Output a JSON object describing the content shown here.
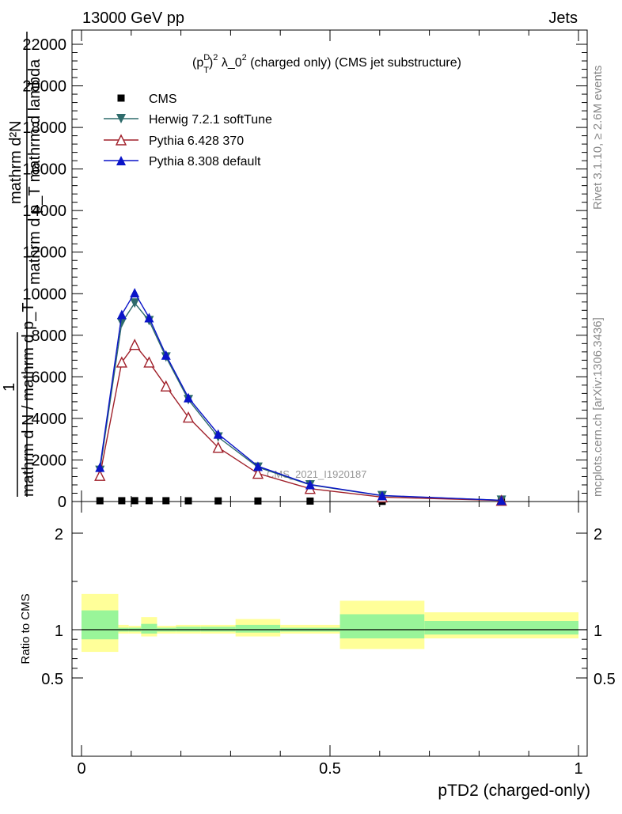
{
  "header": {
    "left": "13000 GeV pp",
    "right": "Jets"
  },
  "plot_title": {
    "prefix": "(p",
    "sup_D": "D",
    "sub_T": "T",
    "sup_2": "2",
    "suffix": " λ_0",
    "sup_tail": "2",
    "rest": " (charged only) (CMS jet substructure)"
  },
  "side_labels": {
    "rivet": "Rivet 3.1.10, ≥ 2.6M events",
    "mcplots": "mcplots.cern.ch [arXiv:1306.3436]"
  },
  "watermark": "CMS_2021_I1920187",
  "ylabel_main": {
    "numerator": "mathrm d²N",
    "fraction_one": "1",
    "denominator_top": "mathrm d p_T mathrm d lambda",
    "denominator_bottom": "mathrm d N / mathrm d p_T"
  },
  "ylabel_ratio": "Ratio to CMS",
  "xlabel": "pTD2 (charged-only)",
  "colors": {
    "cms": "#000000",
    "herwig": "#2e6b6b",
    "pythia6": "#a0202a",
    "pythia8": "#0a14c8",
    "band_inner": "#99f599",
    "band_outer": "#ffff99"
  },
  "chart_data": [
    {
      "type": "line",
      "panel": "main",
      "xlim": [
        0,
        1
      ],
      "ylim": [
        0,
        22500
      ],
      "y_ticks": [
        0,
        2000,
        4000,
        6000,
        8000,
        10000,
        12000,
        14000,
        16000,
        18000,
        20000,
        22000
      ],
      "y_tick_labels": [
        "0",
        "2000",
        "4000",
        "6000",
        "8000",
        "10000",
        "12000",
        "14000",
        "16000",
        "18000",
        "20000",
        "22000"
      ],
      "x": [
        0.037,
        0.081,
        0.107,
        0.136,
        0.17,
        0.215,
        0.275,
        0.355,
        0.46,
        0.605,
        0.845
      ],
      "series": [
        {
          "name": "CMS",
          "marker": "square",
          "values": [
            38,
            40,
            42,
            42,
            40,
            36,
            32,
            27,
            22,
            8,
            2
          ]
        },
        {
          "name": "Herwig 7.2.1 softTune",
          "marker": "triangle-down",
          "values": [
            1500,
            8600,
            9550,
            8700,
            6950,
            4900,
            3100,
            1650,
            800,
            280,
            60
          ]
        },
        {
          "name": "Pythia 6.428 370",
          "marker": "triangle-up-open",
          "values": [
            1250,
            6700,
            7550,
            6700,
            5550,
            4050,
            2600,
            1350,
            620,
            210,
            50
          ]
        },
        {
          "name": "Pythia 8.308 default",
          "marker": "triangle-up",
          "values": [
            1650,
            9000,
            10050,
            8850,
            7050,
            5000,
            3250,
            1700,
            820,
            290,
            60
          ]
        }
      ]
    },
    {
      "type": "area",
      "panel": "ratio",
      "xlim": [
        0,
        1
      ],
      "ylim": [
        0.4,
        2.3
      ],
      "y_ticks": [
        0.5,
        1,
        2
      ],
      "y_tick_labels": [
        "0.5",
        "1",
        "2"
      ],
      "x_ticks": [
        0,
        0.5,
        1
      ],
      "x_tick_labels": [
        "0",
        "0.5",
        "1"
      ],
      "bins": [
        {
          "lo": 0.0,
          "hi": 0.074,
          "inner": [
            0.9,
            1.2
          ],
          "outer": [
            0.77,
            1.37
          ]
        },
        {
          "lo": 0.074,
          "hi": 0.095,
          "inner": [
            0.98,
            1.02
          ],
          "outer": [
            0.96,
            1.05
          ]
        },
        {
          "lo": 0.095,
          "hi": 0.12,
          "inner": [
            0.98,
            1.02
          ],
          "outer": [
            0.96,
            1.04
          ]
        },
        {
          "lo": 0.12,
          "hi": 0.152,
          "inner": [
            0.96,
            1.06
          ],
          "outer": [
            0.93,
            1.13
          ]
        },
        {
          "lo": 0.152,
          "hi": 0.19,
          "inner": [
            0.98,
            1.02
          ],
          "outer": [
            0.96,
            1.04
          ]
        },
        {
          "lo": 0.19,
          "hi": 0.24,
          "inner": [
            0.98,
            1.03
          ],
          "outer": [
            0.96,
            1.05
          ]
        },
        {
          "lo": 0.24,
          "hi": 0.31,
          "inner": [
            0.98,
            1.03
          ],
          "outer": [
            0.96,
            1.05
          ]
        },
        {
          "lo": 0.31,
          "hi": 0.4,
          "inner": [
            0.97,
            1.05
          ],
          "outer": [
            0.93,
            1.11
          ]
        },
        {
          "lo": 0.4,
          "hi": 0.52,
          "inner": [
            0.98,
            1.02
          ],
          "outer": [
            0.96,
            1.05
          ]
        },
        {
          "lo": 0.52,
          "hi": 0.69,
          "inner": [
            0.91,
            1.16
          ],
          "outer": [
            0.8,
            1.3
          ]
        },
        {
          "lo": 0.69,
          "hi": 1.0,
          "inner": [
            0.95,
            1.09
          ],
          "outer": [
            0.91,
            1.18
          ]
        }
      ],
      "reference": 1
    }
  ]
}
